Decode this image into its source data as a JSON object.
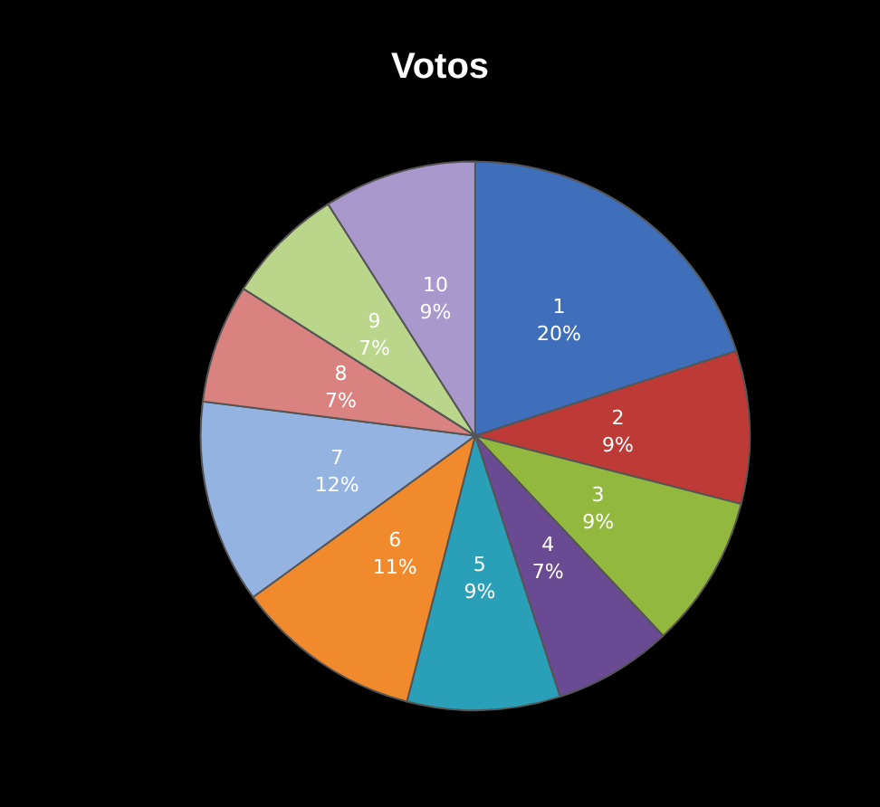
{
  "chart_data": {
    "type": "pie",
    "title": "Votos",
    "categories": [
      "1",
      "2",
      "3",
      "4",
      "5",
      "6",
      "7",
      "8",
      "9",
      "10"
    ],
    "values": [
      20,
      9,
      9,
      7,
      9,
      11,
      12,
      7,
      7,
      9
    ],
    "value_labels": [
      "20%",
      "9%",
      "9%",
      "7%",
      "9%",
      "11%",
      "12%",
      "7%",
      "7%",
      "9%"
    ],
    "colors": [
      "#3f6fba",
      "#be3a36",
      "#93b83e",
      "#6a4a93",
      "#2aa0b8",
      "#f08a2c",
      "#94b3e0",
      "#d9827f",
      "#b9d68a",
      "#a898cc"
    ]
  }
}
